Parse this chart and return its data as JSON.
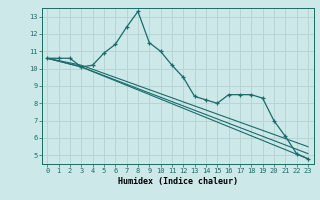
{
  "xlabel": "Humidex (Indice chaleur)",
  "background_color": "#cce8e8",
  "grid_color": "#b8d4d4",
  "line_color": "#1a6b6b",
  "xlim": [
    -0.5,
    23.5
  ],
  "ylim": [
    4.5,
    13.5
  ],
  "xticks": [
    0,
    1,
    2,
    3,
    4,
    5,
    6,
    7,
    8,
    9,
    10,
    11,
    12,
    13,
    14,
    15,
    16,
    17,
    18,
    19,
    20,
    21,
    22,
    23
  ],
  "yticks": [
    5,
    6,
    7,
    8,
    9,
    10,
    11,
    12,
    13
  ],
  "series": [
    {
      "x": [
        0,
        1,
        2,
        3,
        4,
        5,
        6,
        7,
        8,
        9,
        10,
        11,
        12,
        13,
        14,
        15,
        16,
        17,
        18,
        19,
        20,
        21,
        22,
        23
      ],
      "y": [
        10.6,
        10.6,
        10.6,
        10.1,
        10.2,
        10.9,
        11.4,
        12.4,
        13.3,
        11.5,
        11.0,
        10.2,
        9.5,
        8.4,
        8.2,
        8.0,
        8.5,
        8.5,
        8.5,
        8.3,
        7.0,
        6.1,
        5.1,
        4.8
      ],
      "marker": "+"
    },
    {
      "x": [
        0,
        3,
        23
      ],
      "y": [
        10.6,
        10.1,
        4.8
      ],
      "marker": null
    },
    {
      "x": [
        0,
        3,
        23
      ],
      "y": [
        10.6,
        10.1,
        5.1
      ],
      "marker": null
    },
    {
      "x": [
        0,
        3,
        23
      ],
      "y": [
        10.6,
        10.2,
        5.5
      ],
      "marker": null
    }
  ]
}
